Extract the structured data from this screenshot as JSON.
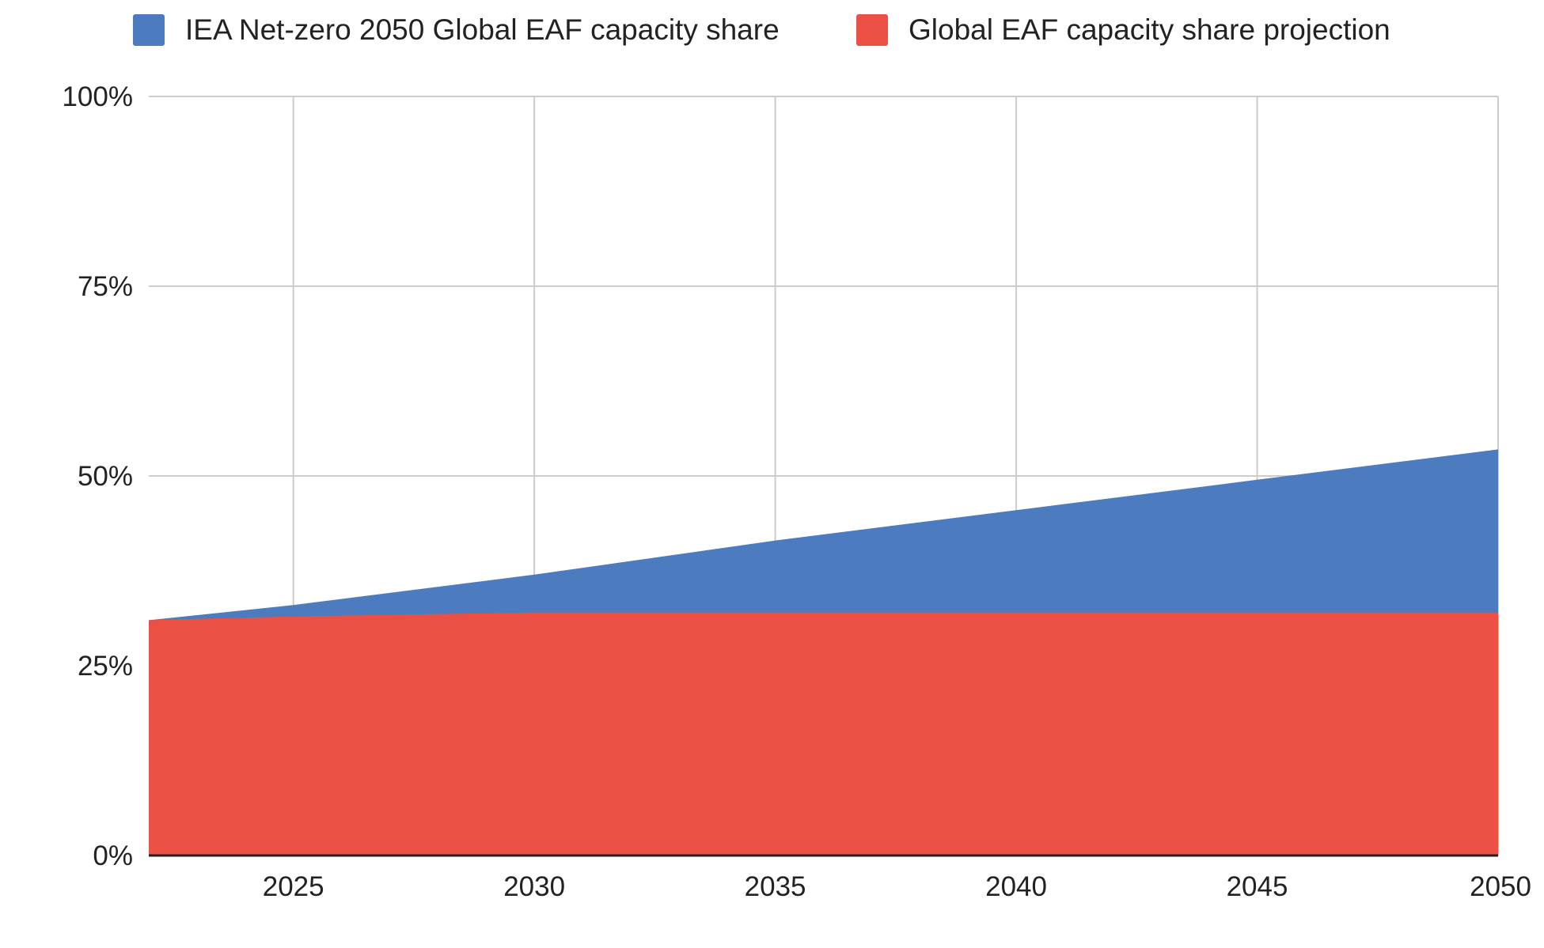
{
  "chart_data": {
    "type": "area",
    "x": [
      2022,
      2025,
      2030,
      2035,
      2040,
      2045,
      2050
    ],
    "series": [
      {
        "name": "IEA Net-zero 2050 Global EAF capacity share",
        "color": "#4d7bbf",
        "values": [
          31,
          33,
          37,
          41.5,
          45.5,
          49.5,
          53.5
        ]
      },
      {
        "name": "Global EAF capacity share projection",
        "color": "#ec4f43",
        "values": [
          31,
          31.5,
          32,
          32,
          32,
          32,
          32
        ]
      }
    ],
    "x_ticks": [
      2025,
      2030,
      2035,
      2040,
      2045,
      2050
    ],
    "x_tick_labels": [
      "2025",
      "2030",
      "2035",
      "2040",
      "2045",
      "2050"
    ],
    "y_ticks": [
      0,
      25,
      50,
      75,
      100
    ],
    "y_tick_labels": [
      "0%",
      "25%",
      "50%",
      "75%",
      "100%"
    ],
    "xlim": [
      2022,
      2050
    ],
    "ylim": [
      0,
      100
    ],
    "title": "",
    "xlabel": "",
    "ylabel": "",
    "legend_position": "top",
    "grid": true,
    "grid_color": "#cccccc",
    "axis_color": "#222222"
  }
}
